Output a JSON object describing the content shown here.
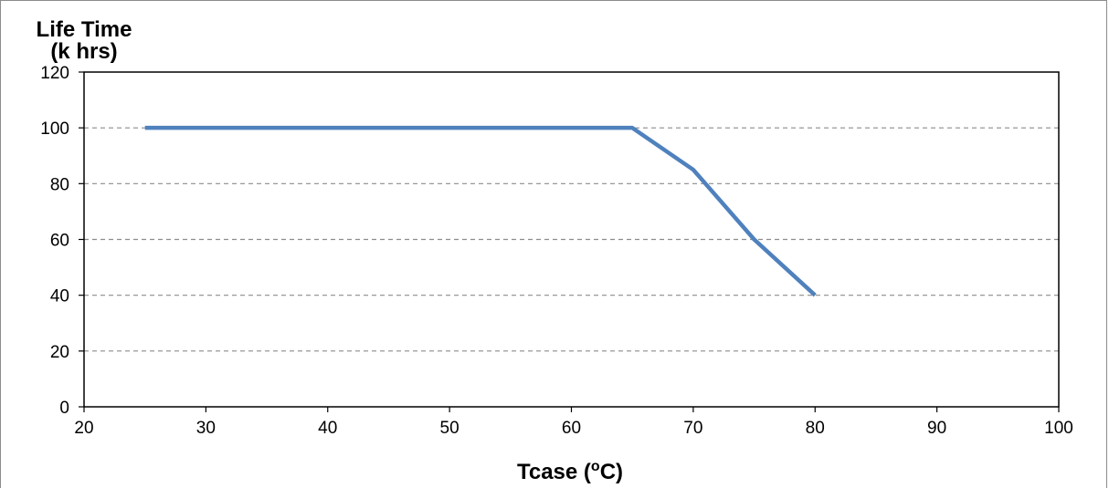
{
  "chart_data": {
    "type": "line",
    "title": "",
    "ylabel_line1": "Life Time",
    "ylabel_line2": "(k hrs)",
    "xlabel_main": "Tcase (",
    "xlabel_sup": "o",
    "xlabel_unit": "C)",
    "xlim": [
      20,
      100
    ],
    "ylim": [
      0,
      120
    ],
    "x_ticks": [
      20,
      30,
      40,
      50,
      60,
      70,
      80,
      90,
      100
    ],
    "y_ticks": [
      0,
      20,
      40,
      60,
      80,
      100,
      120
    ],
    "grid": "horizontal-dashed",
    "legend": "none",
    "series": [
      {
        "color": "#4f81bd",
        "x": [
          25,
          65,
          70,
          75,
          80
        ],
        "y": [
          100,
          100,
          85,
          60,
          40
        ]
      }
    ]
  }
}
